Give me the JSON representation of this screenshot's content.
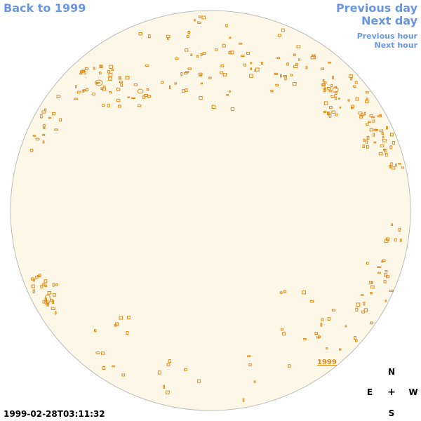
{
  "nav": {
    "back_label": "Back to 1999",
    "prev_day_label": "Previous day",
    "next_day_label": "Next day",
    "prev_hour_label": "Previous hour",
    "next_hour_label": "Next hour"
  },
  "sun": {
    "disk_color": "#fdf7e8",
    "border_color": "#bbbbbb",
    "feature_color": "#e08a1a",
    "year_link": "1999"
  },
  "compass": {
    "north": "N",
    "east": "E",
    "center": "+",
    "west": "W",
    "south": "S"
  },
  "timestamp": "1999-02-28T03:11:32",
  "colors": {
    "link": "#6a96e0",
    "feature": "#e08a1a"
  }
}
